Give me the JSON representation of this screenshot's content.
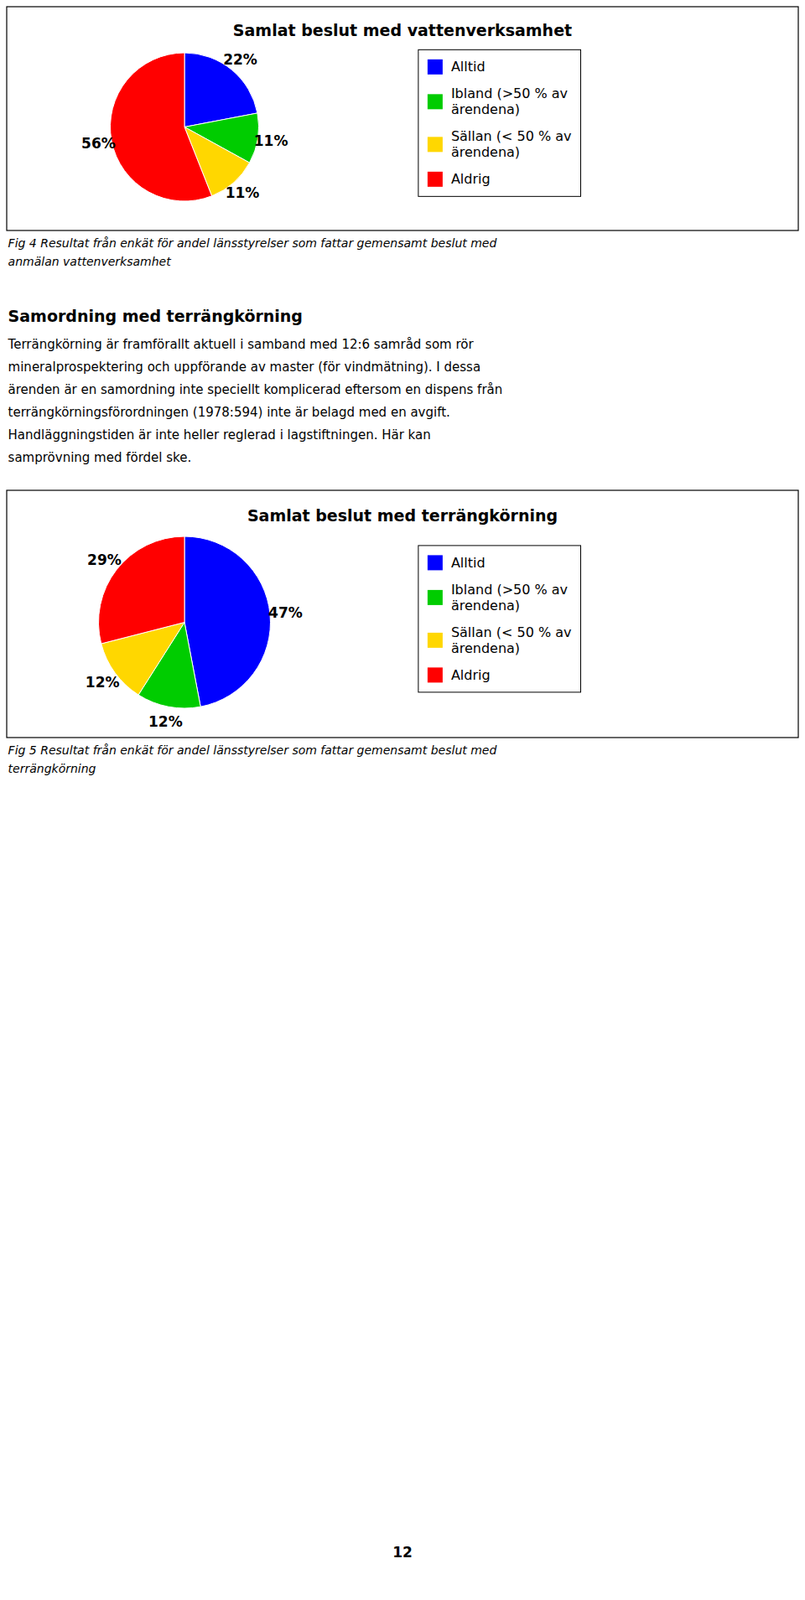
{
  "chart_data": [
    {
      "type": "pie",
      "title": "Samlat beslut med vattenverksamhet",
      "categories": [
        "Alltid",
        "Ibland (>50 % av\närendena)",
        "Sällan (< 50 % av\närendena)",
        "Aldrig"
      ],
      "values": [
        22,
        11,
        11,
        56
      ],
      "value_labels": [
        "22%",
        "11%",
        "11%",
        "56%"
      ],
      "colors": [
        "#0000FF",
        "#00CC00",
        "#FFD700",
        "#FF0000"
      ],
      "data_labels": true,
      "legend": "right",
      "caption": "Fig 4 Resultat från enkät för andel länsstyrelser som fattar gemensamt beslut med\nanmälan vattenverksamhet"
    },
    {
      "type": "pie",
      "title": "Samlat beslut med terrängkörning",
      "categories": [
        "Alltid",
        "Ibland (>50 % av\närendena)",
        "Sällan (< 50 % av\närendena)",
        "Aldrig"
      ],
      "values": [
        47,
        12,
        12,
        29
      ],
      "value_labels": [
        "47%",
        "12%",
        "12%",
        "29%"
      ],
      "colors": [
        "#0000FF",
        "#00CC00",
        "#FFD700",
        "#FF0000"
      ],
      "data_labels": true,
      "legend": "right",
      "caption": "Fig 5 Resultat från enkät för andel länsstyrelser som fattar gemensamt beslut med\nterrängkörning"
    }
  ],
  "heading": "Samordning med terrängkörning",
  "body_text": "Terrängkörning är framförallt aktuell i samband med 12:6 samråd som rör\nmineralprospektering och uppförande av master (för vindmätning). I dessa\närenden är en samordning inte speciellt komplicerad eftersom en dispens från\nterrängkörningsförordningen (1978:594) inte är belagd med en avgift.\nHandläggningstiden är inte heller reglerad i lagstiftningen. Här kan\nsamprövning med fördel ske.",
  "page_number": "12"
}
